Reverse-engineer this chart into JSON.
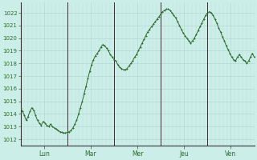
{
  "background_color": "#cceee8",
  "plot_bg_color": "#cceee8",
  "line_color": "#2d6a2d",
  "marker_color": "#2d6a2d",
  "grid_color_major": "#aad4cc",
  "grid_color_minor": "#bbddd8",
  "vline_color": "#333333",
  "tick_label_color": "#2d6a2d",
  "ylim": [
    1011.5,
    1022.8
  ],
  "yticks": [
    1012,
    1013,
    1014,
    1015,
    1016,
    1017,
    1018,
    1019,
    1020,
    1021,
    1022
  ],
  "xlim": [
    0,
    120
  ],
  "vlines_x": [
    24,
    48,
    72,
    96
  ],
  "xtick_positions": [
    12,
    36,
    60,
    84,
    108
  ],
  "xtick_labels": [
    "Lun",
    "Mar",
    "Mer",
    "Jeu",
    "Ven"
  ],
  "y_values": [
    1014.5,
    1014.2,
    1013.9,
    1013.5,
    1013.8,
    1014.2,
    1014.5,
    1014.3,
    1013.9,
    1013.5,
    1013.3,
    1013.1,
    1013.4,
    1013.3,
    1013.1,
    1013.0,
    1013.2,
    1013.0,
    1012.9,
    1012.8,
    1012.7,
    1012.6,
    1012.55,
    1012.5,
    1012.5,
    1012.55,
    1012.6,
    1012.7,
    1012.9,
    1013.2,
    1013.5,
    1014.0,
    1014.5,
    1015.0,
    1015.6,
    1016.2,
    1016.8,
    1017.4,
    1017.9,
    1018.3,
    1018.6,
    1018.8,
    1019.0,
    1019.3,
    1019.5,
    1019.4,
    1019.2,
    1019.0,
    1018.7,
    1018.5,
    1018.3,
    1018.2,
    1017.9,
    1017.7,
    1017.6,
    1017.5,
    1017.5,
    1017.6,
    1017.8,
    1018.0,
    1018.2,
    1018.5,
    1018.7,
    1019.0,
    1019.3,
    1019.6,
    1019.9,
    1020.2,
    1020.5,
    1020.7,
    1020.9,
    1021.1,
    1021.3,
    1021.5,
    1021.7,
    1021.9,
    1022.1,
    1022.2,
    1022.3,
    1022.3,
    1022.2,
    1022.0,
    1021.8,
    1021.6,
    1021.3,
    1021.0,
    1020.7,
    1020.4,
    1020.2,
    1020.0,
    1019.8,
    1019.6,
    1019.8,
    1020.0,
    1020.3,
    1020.6,
    1020.9,
    1021.2,
    1021.5,
    1021.8,
    1022.0,
    1022.1,
    1022.0,
    1021.8,
    1021.5,
    1021.2,
    1020.8,
    1020.5,
    1020.1,
    1019.8,
    1019.4,
    1019.1,
    1018.8,
    1018.5,
    1018.3,
    1018.2,
    1018.5,
    1018.7,
    1018.5,
    1018.3,
    1018.2,
    1018.0,
    1018.2,
    1018.5,
    1018.8,
    1018.5
  ]
}
